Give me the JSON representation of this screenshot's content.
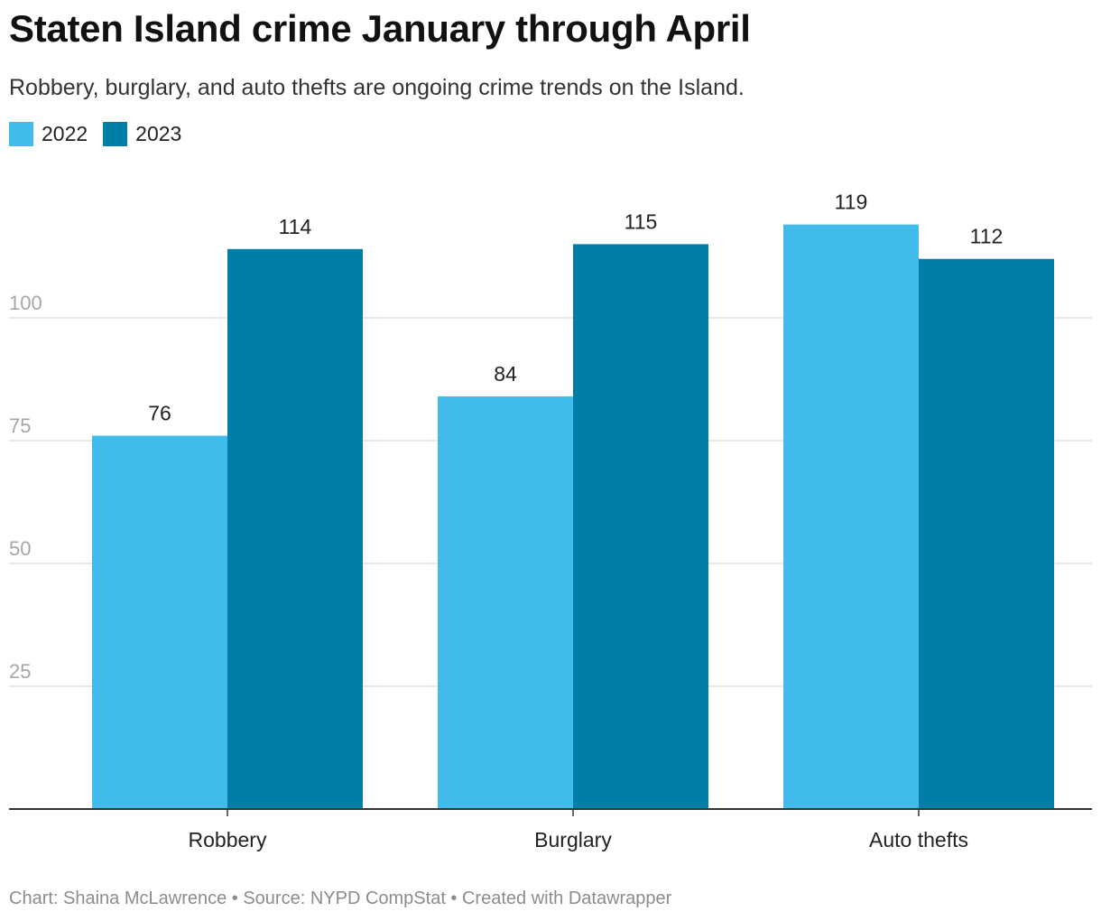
{
  "title": "Staten Island crime January through April",
  "subtitle": "Robbery, burglary, and auto thefts are ongoing crime trends on the Island.",
  "legend": [
    {
      "label": "2022",
      "color": "#41bbea"
    },
    {
      "label": "2023",
      "color": "#007ea7"
    }
  ],
  "footer": "Chart: Shaina McLawrence • Source: NYPD CompStat • Created with Datawrapper",
  "chart_data": {
    "type": "bar",
    "title": "Staten Island crime January through April",
    "subtitle": "Robbery, burglary, and auto thefts are ongoing crime trends on the Island.",
    "categories": [
      "Robbery",
      "Burglary",
      "Auto thefts"
    ],
    "series": [
      {
        "name": "2022",
        "values": [
          76,
          84,
          119
        ],
        "color": "#41bbea"
      },
      {
        "name": "2023",
        "values": [
          114,
          115,
          112
        ],
        "color": "#007ea7"
      }
    ],
    "yticks": [
      25,
      50,
      75,
      100
    ],
    "ylim": [
      0,
      130
    ],
    "grid": true,
    "legend_position": "top-left",
    "xlabel": "",
    "ylabel": ""
  }
}
